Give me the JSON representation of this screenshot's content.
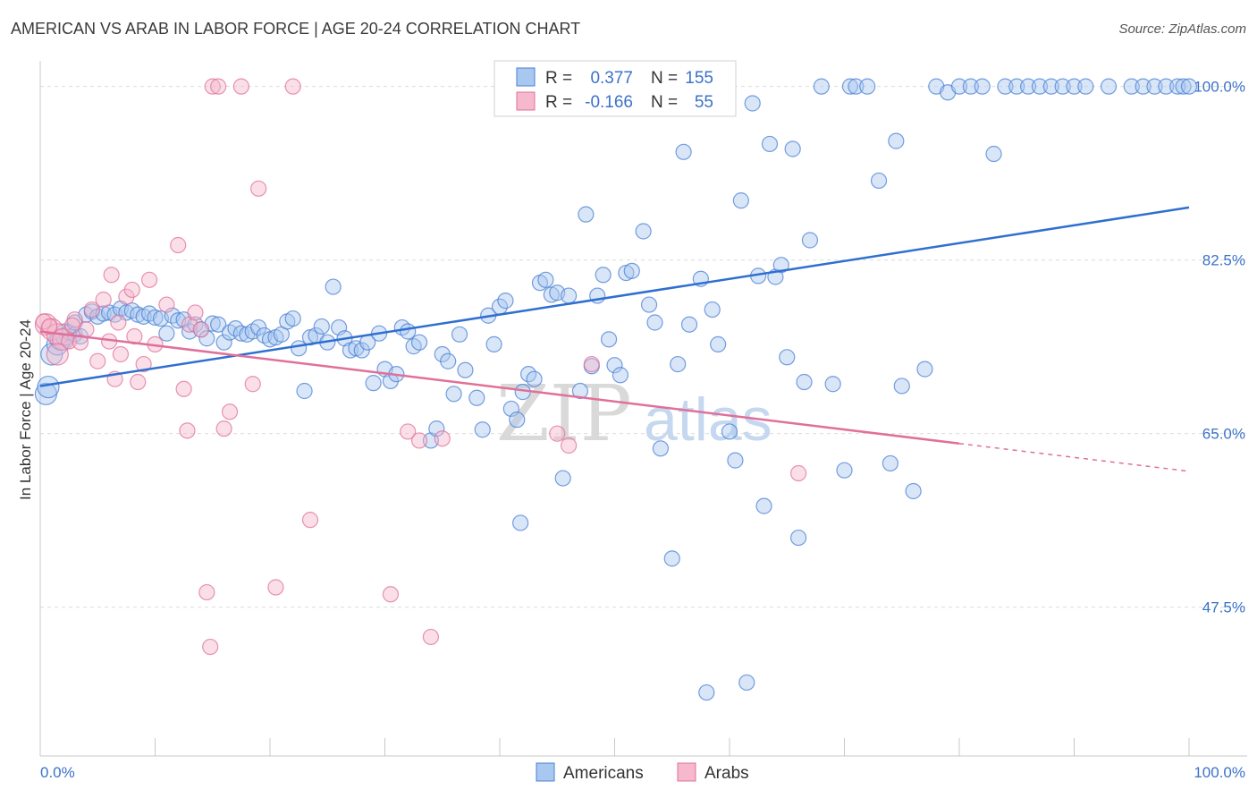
{
  "header": {
    "title": "AMERICAN VS ARAB IN LABOR FORCE | AGE 20-24 CORRELATION CHART",
    "source": "Source: ZipAtlas.com"
  },
  "colors": {
    "blue": "#4a7fd4",
    "blue_fill": "#a9c8f0",
    "pink": "#e0709a",
    "pink_fill": "#f5b8cc",
    "axis_text_blue": "#3b72c9",
    "grid": "#dcdcdc"
  },
  "watermark": {
    "zip": "ZIP",
    "atlas": "atlas"
  },
  "chart_data": {
    "type": "scatter",
    "title": "AMERICAN VS ARAB IN LABOR FORCE | AGE 20-24 CORRELATION CHART",
    "xlabel": "",
    "ylabel": "In Labor Force | Age 20-24",
    "xlim": [
      0,
      100
    ],
    "ylim": [
      32.5,
      101.5
    ],
    "x_tick_labels": [
      "0.0%",
      "100.0%"
    ],
    "y_ticks": [
      100.0,
      82.5,
      65.0,
      47.5
    ],
    "y_tick_labels": [
      "100.0%",
      "82.5%",
      "65.0%",
      "47.5%"
    ],
    "grid": true,
    "legend_position": "top-center",
    "bottom_legend": [
      "Americans",
      "Arabs"
    ],
    "stats": [
      {
        "r_label": "R =",
        "r": "0.377",
        "n_label": "N =",
        "n": "155"
      },
      {
        "r_label": "R =",
        "r": "-0.166",
        "n_label": "N =",
        "n": "55"
      }
    ],
    "series": [
      {
        "name": "Americans",
        "trend": {
          "x": [
            0,
            100
          ],
          "y": [
            69.8,
            87.8
          ]
        },
        "points": [
          [
            0.5,
            69.0
          ],
          [
            0.7,
            69.7
          ],
          [
            1.0,
            73.0
          ],
          [
            1.5,
            74.0
          ],
          [
            1.8,
            74.5
          ],
          [
            2.2,
            75.0
          ],
          [
            2.5,
            75.2
          ],
          [
            3.0,
            75.0
          ],
          [
            3.5,
            74.8
          ],
          [
            3.0,
            76.2
          ],
          [
            4.0,
            77.0
          ],
          [
            4.5,
            77.3
          ],
          [
            5.0,
            76.8
          ],
          [
            5.5,
            77.1
          ],
          [
            6.0,
            77.2
          ],
          [
            6.5,
            77.0
          ],
          [
            7.0,
            77.6
          ],
          [
            7.5,
            77.2
          ],
          [
            8.0,
            77.4
          ],
          [
            8.5,
            77.0
          ],
          [
            9.0,
            76.8
          ],
          [
            9.5,
            77.1
          ],
          [
            10.0,
            76.7
          ],
          [
            10.5,
            76.6
          ],
          [
            11.0,
            75.1
          ],
          [
            11.5,
            76.9
          ],
          [
            12.0,
            76.4
          ],
          [
            12.5,
            76.5
          ],
          [
            13.0,
            75.3
          ],
          [
            13.5,
            76.0
          ],
          [
            14.0,
            75.5
          ],
          [
            14.5,
            74.6
          ],
          [
            15.0,
            76.1
          ],
          [
            15.5,
            76.0
          ],
          [
            16.0,
            74.2
          ],
          [
            16.5,
            75.2
          ],
          [
            17.0,
            75.6
          ],
          [
            17.5,
            75.1
          ],
          [
            18.0,
            75.0
          ],
          [
            18.5,
            75.3
          ],
          [
            19.0,
            75.7
          ],
          [
            19.5,
            74.9
          ],
          [
            20.0,
            74.5
          ],
          [
            20.5,
            74.7
          ],
          [
            21.0,
            75.0
          ],
          [
            21.5,
            76.3
          ],
          [
            22.0,
            76.6
          ],
          [
            22.5,
            73.6
          ],
          [
            23.0,
            69.3
          ],
          [
            23.5,
            74.7
          ],
          [
            24.0,
            74.9
          ],
          [
            24.5,
            75.8
          ],
          [
            25.0,
            74.2
          ],
          [
            25.5,
            79.8
          ],
          [
            26.0,
            75.7
          ],
          [
            26.5,
            74.6
          ],
          [
            27.0,
            73.4
          ],
          [
            27.5,
            73.6
          ],
          [
            28.0,
            73.4
          ],
          [
            28.5,
            74.2
          ],
          [
            29.0,
            70.1
          ],
          [
            29.5,
            75.1
          ],
          [
            30.0,
            71.5
          ],
          [
            30.5,
            70.3
          ],
          [
            31.0,
            71.0
          ],
          [
            31.5,
            75.7
          ],
          [
            32.0,
            75.3
          ],
          [
            32.5,
            73.8
          ],
          [
            33.0,
            74.2
          ],
          [
            34.0,
            64.3
          ],
          [
            34.5,
            65.5
          ],
          [
            35.0,
            73.0
          ],
          [
            35.5,
            72.3
          ],
          [
            36.0,
            69.0
          ],
          [
            36.5,
            75.0
          ],
          [
            37.0,
            71.4
          ],
          [
            38.0,
            68.6
          ],
          [
            38.5,
            65.4
          ],
          [
            39.0,
            76.9
          ],
          [
            39.5,
            74.0
          ],
          [
            40.0,
            77.8
          ],
          [
            40.5,
            78.4
          ],
          [
            41.0,
            67.5
          ],
          [
            41.5,
            66.4
          ],
          [
            42.0,
            69.2
          ],
          [
            42.5,
            71.0
          ],
          [
            43.0,
            70.5
          ],
          [
            41.8,
            56.0
          ],
          [
            43.5,
            80.2
          ],
          [
            44.0,
            80.5
          ],
          [
            44.5,
            79.0
          ],
          [
            45.0,
            79.2
          ],
          [
            45.5,
            60.5
          ],
          [
            46.0,
            78.9
          ],
          [
            47.0,
            69.3
          ],
          [
            47.5,
            87.1
          ],
          [
            48.0,
            71.8
          ],
          [
            48.5,
            78.9
          ],
          [
            49.0,
            81.0
          ],
          [
            49.5,
            74.5
          ],
          [
            50.0,
            71.9
          ],
          [
            50.5,
            70.9
          ],
          [
            51.0,
            81.2
          ],
          [
            51.5,
            81.4
          ],
          [
            52.5,
            85.4
          ],
          [
            53.0,
            78.0
          ],
          [
            53.5,
            76.2
          ],
          [
            54.0,
            63.5
          ],
          [
            55.0,
            52.4
          ],
          [
            55.5,
            72.0
          ],
          [
            56.0,
            93.4
          ],
          [
            56.5,
            76.0
          ],
          [
            57.5,
            80.6
          ],
          [
            58.0,
            38.9
          ],
          [
            58.5,
            77.5
          ],
          [
            59.0,
            74.0
          ],
          [
            60.0,
            65.2
          ],
          [
            60.5,
            62.3
          ],
          [
            61.0,
            88.5
          ],
          [
            61.5,
            39.9
          ],
          [
            62.0,
            98.3
          ],
          [
            62.5,
            80.9
          ],
          [
            63.0,
            57.7
          ],
          [
            63.5,
            94.2
          ],
          [
            64.0,
            80.8
          ],
          [
            64.5,
            82.0
          ],
          [
            65.0,
            72.7
          ],
          [
            65.5,
            93.7
          ],
          [
            66.0,
            54.5
          ],
          [
            66.5,
            70.2
          ],
          [
            67.0,
            84.5
          ],
          [
            68.0,
            100.0
          ],
          [
            69.0,
            70.0
          ],
          [
            70.0,
            61.3
          ],
          [
            70.5,
            100.0
          ],
          [
            71.0,
            100.0
          ],
          [
            72.0,
            100.0
          ],
          [
            73.0,
            90.5
          ],
          [
            74.0,
            62.0
          ],
          [
            74.5,
            94.5
          ],
          [
            75.0,
            69.8
          ],
          [
            76.0,
            59.2
          ],
          [
            77.0,
            71.5
          ],
          [
            78.0,
            100.0
          ],
          [
            79.0,
            99.4
          ],
          [
            80.0,
            100.0
          ],
          [
            81.0,
            100.0
          ],
          [
            82.0,
            100.0
          ],
          [
            83.0,
            93.2
          ],
          [
            84.0,
            100.0
          ],
          [
            85.0,
            100.0
          ],
          [
            86.0,
            100.0
          ],
          [
            87.0,
            100.0
          ],
          [
            88.0,
            100.0
          ],
          [
            89.0,
            100.0
          ],
          [
            90.0,
            100.0
          ],
          [
            91.0,
            100.0
          ],
          [
            93.0,
            100.0
          ],
          [
            95.0,
            100.0
          ],
          [
            96.0,
            100.0
          ],
          [
            97.0,
            100.0
          ],
          [
            98.0,
            100.0
          ],
          [
            99.0,
            100.0
          ],
          [
            99.5,
            100.0
          ],
          [
            100.0,
            100.0
          ]
        ]
      },
      {
        "name": "Arabs",
        "trend": {
          "x": [
            0,
            80
          ],
          "y": [
            75.3,
            64.0
          ]
        },
        "trend_dashed": {
          "x": [
            80,
            100
          ],
          "y": [
            64.0,
            61.2
          ]
        },
        "points": [
          [
            0.5,
            76.0
          ],
          [
            1.0,
            75.5
          ],
          [
            1.5,
            75.0
          ],
          [
            2.0,
            74.5
          ],
          [
            2.5,
            74.3
          ],
          [
            1.5,
            73.0
          ],
          [
            3.0,
            76.5
          ],
          [
            3.5,
            74.2
          ],
          [
            4.0,
            75.5
          ],
          [
            4.5,
            77.5
          ],
          [
            5.0,
            72.3
          ],
          [
            5.5,
            78.5
          ],
          [
            6.0,
            74.3
          ],
          [
            6.2,
            81.0
          ],
          [
            6.5,
            70.5
          ],
          [
            7.0,
            73.0
          ],
          [
            7.5,
            78.8
          ],
          [
            8.0,
            79.5
          ],
          [
            8.5,
            70.2
          ],
          [
            9.0,
            72.0
          ],
          [
            9.5,
            80.5
          ],
          [
            10.0,
            74.0
          ],
          [
            11.0,
            78.0
          ],
          [
            12.0,
            84.0
          ],
          [
            12.5,
            69.5
          ],
          [
            12.8,
            65.3
          ],
          [
            13.0,
            76.0
          ],
          [
            13.5,
            77.2
          ],
          [
            14.0,
            75.5
          ],
          [
            14.5,
            49.0
          ],
          [
            14.8,
            43.5
          ],
          [
            15.0,
            100.0
          ],
          [
            15.5,
            100.0
          ],
          [
            16.0,
            65.5
          ],
          [
            16.5,
            67.2
          ],
          [
            17.5,
            100.0
          ],
          [
            18.5,
            70.0
          ],
          [
            19.0,
            89.7
          ],
          [
            20.5,
            49.5
          ],
          [
            22.0,
            100.0
          ],
          [
            23.5,
            56.3
          ],
          [
            30.5,
            48.8
          ],
          [
            32.0,
            65.2
          ],
          [
            33.0,
            64.3
          ],
          [
            34.0,
            44.5
          ],
          [
            35.0,
            64.5
          ],
          [
            45.0,
            65.0
          ],
          [
            46.0,
            63.8
          ],
          [
            48.0,
            72.0
          ],
          [
            66.0,
            61.0
          ],
          [
            0.3,
            76.3
          ],
          [
            0.8,
            75.8
          ],
          [
            2.8,
            75.9
          ],
          [
            6.8,
            76.2
          ],
          [
            8.2,
            74.8
          ]
        ]
      }
    ]
  }
}
